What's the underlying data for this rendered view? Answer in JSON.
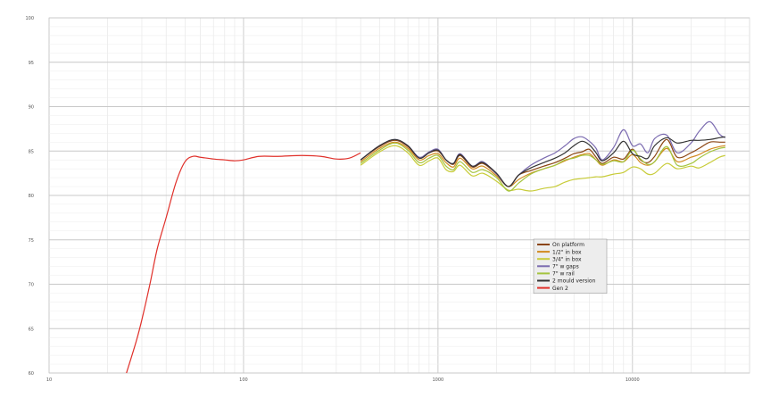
{
  "chart_data": {
    "type": "line",
    "title": "",
    "xlabel": "",
    "ylabel": "",
    "xscale": "log",
    "xlim": [
      10,
      40000
    ],
    "ylim": [
      60,
      100
    ],
    "grid": true,
    "legend_position": "center-right",
    "x_ticks": [
      {
        "value": 10,
        "label": "10"
      },
      {
        "value": 100,
        "label": "100"
      },
      {
        "value": 1000,
        "label": "1000"
      },
      {
        "value": 10000,
        "label": "10000"
      }
    ],
    "y_ticks": [
      {
        "value": 60,
        "label": "60"
      },
      {
        "value": 65,
        "label": "65"
      },
      {
        "value": 70,
        "label": "70"
      },
      {
        "value": 75,
        "label": "75"
      },
      {
        "value": 80,
        "label": "80"
      },
      {
        "value": 85,
        "label": "85"
      },
      {
        "value": 90,
        "label": "90"
      },
      {
        "value": 95,
        "label": "95"
      },
      {
        "value": 100,
        "label": "100"
      }
    ],
    "series": [
      {
        "name": "On platform",
        "color": "#8b4513",
        "x": [
          400,
          500,
          600,
          700,
          800,
          900,
          1000,
          1100,
          1200,
          1300,
          1500,
          1700,
          2000,
          2300,
          2600,
          3000,
          3500,
          4000,
          4500,
          5000,
          5500,
          6000,
          6500,
          7000,
          8000,
          9000,
          10000,
          11000,
          12000,
          13000,
          15000,
          17000,
          20000,
          22000,
          25000,
          28000,
          30000
        ],
        "y": [
          84,
          85.5,
          86.2,
          85.5,
          84.2,
          84.8,
          85,
          84,
          83.5,
          84.5,
          83.2,
          83.6,
          82.4,
          81,
          82.3,
          82.8,
          83.3,
          83.7,
          84.2,
          84.7,
          84.9,
          85.2,
          84.3,
          83.6,
          84.3,
          84.1,
          85.2,
          84,
          83.7,
          84.4,
          86.3,
          84.3,
          84.8,
          85.3,
          86,
          86,
          86
        ]
      },
      {
        "name": "1/2\" in box",
        "color": "#d2891e",
        "x": [
          400,
          500,
          600,
          700,
          800,
          900,
          1000,
          1100,
          1200,
          1300,
          1500,
          1700,
          2000,
          2300,
          2600,
          3000,
          3500,
          4000,
          4500,
          5000,
          5500,
          6000,
          6500,
          7000,
          8000,
          9000,
          10000,
          11000,
          12000,
          13000,
          15000,
          17000,
          20000,
          22000,
          25000,
          28000,
          30000
        ],
        "y": [
          83.8,
          85.3,
          86,
          85.3,
          84,
          84.5,
          84.7,
          83.7,
          83.2,
          84.2,
          83,
          83.3,
          82.2,
          81,
          81.8,
          82.5,
          83,
          83.4,
          83.9,
          84.3,
          84.6,
          84.7,
          84,
          83.4,
          84,
          83.8,
          84.6,
          83.7,
          83.4,
          83.8,
          85.3,
          83.8,
          84.3,
          84.6,
          85.2,
          85.5,
          85.6
        ]
      },
      {
        "name": "3/4\" in box",
        "color": "#c8cc3a",
        "x": [
          400,
          500,
          600,
          700,
          800,
          900,
          1000,
          1100,
          1200,
          1300,
          1500,
          1700,
          2000,
          2300,
          2600,
          3000,
          3500,
          4000,
          4500,
          5000,
          5500,
          6000,
          6500,
          7000,
          8000,
          9000,
          10000,
          11000,
          12000,
          13000,
          15000,
          17000,
          20000,
          22000,
          25000,
          28000,
          30000
        ],
        "y": [
          83.4,
          84.9,
          85.6,
          84.8,
          83.4,
          83.9,
          84.2,
          82.9,
          82.7,
          83.4,
          82.2,
          82.5,
          81.6,
          80.6,
          80.7,
          80.5,
          80.8,
          81,
          81.5,
          81.8,
          81.9,
          82,
          82.1,
          82.1,
          82.4,
          82.6,
          83.2,
          83,
          82.4,
          82.5,
          83.6,
          83,
          83.3,
          83.1,
          83.7,
          84.3,
          84.5
        ]
      },
      {
        "name": "7\" w gaps",
        "color": "#7b6bb0",
        "x": [
          400,
          500,
          600,
          700,
          800,
          900,
          1000,
          1100,
          1200,
          1300,
          1500,
          1700,
          2000,
          2300,
          2600,
          3000,
          3500,
          4000,
          4500,
          5000,
          5500,
          6000,
          6500,
          7000,
          8000,
          9000,
          10000,
          11000,
          12000,
          13000,
          15000,
          17000,
          20000,
          22000,
          25000,
          28000,
          30000
        ],
        "y": [
          84,
          85.6,
          86.3,
          85.6,
          84.3,
          84.9,
          85.2,
          84,
          83.6,
          84.7,
          83.3,
          83.8,
          82.4,
          81,
          82.3,
          83.4,
          84.2,
          84.8,
          85.6,
          86.4,
          86.6,
          86.1,
          85.3,
          84,
          85.4,
          87.4,
          85.6,
          85.8,
          84.8,
          86.4,
          86.8,
          84.8,
          85.9,
          87.2,
          88.3,
          86.9,
          86.5
        ]
      },
      {
        "name": "7\" w rail",
        "color": "#a4c43e",
        "x": [
          400,
          500,
          600,
          700,
          800,
          900,
          1000,
          1100,
          1200,
          1300,
          1500,
          1700,
          2000,
          2300,
          2600,
          3000,
          3500,
          4000,
          4500,
          5000,
          5500,
          6000,
          6500,
          7000,
          8000,
          9000,
          10000,
          11000,
          12000,
          13000,
          15000,
          17000,
          20000,
          22000,
          25000,
          28000,
          30000
        ],
        "y": [
          83.6,
          85.1,
          85.9,
          85.1,
          83.7,
          84.2,
          84.5,
          83.3,
          82.9,
          83.8,
          82.6,
          82.9,
          82,
          80.5,
          81.4,
          82.4,
          83,
          83.4,
          84,
          84.2,
          84.5,
          84.5,
          84,
          83.5,
          83.9,
          83.8,
          85.1,
          84.1,
          83.5,
          83.8,
          85.5,
          83.4,
          83.6,
          84.2,
          84.9,
          85.3,
          85.4
        ]
      },
      {
        "name": "2 mould version",
        "color": "#333333",
        "x": [
          400,
          500,
          600,
          700,
          800,
          900,
          1000,
          1100,
          1200,
          1300,
          1500,
          1700,
          2000,
          2300,
          2600,
          3000,
          3500,
          4000,
          4500,
          5000,
          5500,
          6000,
          6500,
          7000,
          8000,
          9000,
          10000,
          11000,
          12000,
          13000,
          15000,
          17000,
          20000,
          22000,
          25000,
          28000,
          30000
        ],
        "y": [
          84,
          85.6,
          86.3,
          85.6,
          84.2,
          84.8,
          85.1,
          84,
          83.6,
          84.6,
          83.3,
          83.7,
          82.5,
          81,
          82.3,
          83.1,
          83.7,
          84.2,
          84.8,
          85.6,
          86.1,
          85.7,
          84.8,
          83.9,
          84.8,
          86.1,
          84.7,
          84.4,
          84.2,
          85.6,
          86.5,
          85.9,
          86.2,
          86.2,
          86.3,
          86.5,
          86.6
        ]
      },
      {
        "name": "Gen 2",
        "color": "#e0302a",
        "x": [
          25,
          28,
          30,
          33,
          36,
          40,
          45,
          50,
          55,
          60,
          70,
          80,
          90,
          100,
          120,
          150,
          200,
          250,
          300,
          350,
          400
        ],
        "y": [
          60,
          63.5,
          66,
          70,
          74,
          77.5,
          81.5,
          83.8,
          84.4,
          84.3,
          84.1,
          84,
          83.9,
          84,
          84.4,
          84.4,
          84.5,
          84.4,
          84.1,
          84.2,
          84.8
        ]
      }
    ]
  }
}
